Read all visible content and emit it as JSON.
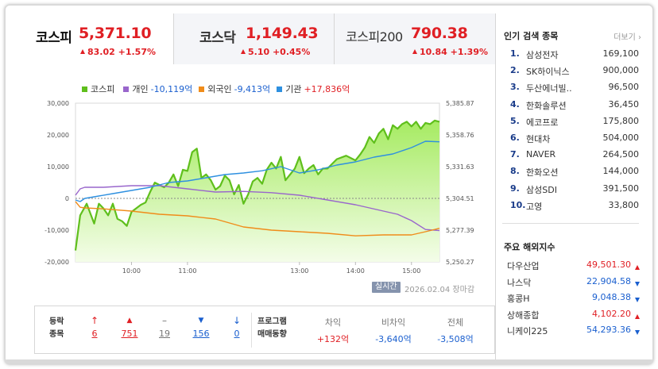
{
  "tabs": [
    {
      "name": "코스피",
      "value": "5,371.10",
      "change": "83.02 +1.57%",
      "direction": "up",
      "active": true
    },
    {
      "name": "코스닥",
      "value": "1,149.43",
      "change": "5.10 +0.45%",
      "direction": "up",
      "active": false
    },
    {
      "name": "코스피200",
      "value": "790.38",
      "change": "10.84 +1.39%",
      "direction": "up",
      "active": false
    }
  ],
  "legend": [
    {
      "name": "코스피",
      "value": "",
      "color": "#5fbf1c",
      "tone": ""
    },
    {
      "name": "개인",
      "value": "-10,119억",
      "color": "#9966cc",
      "tone": "neg"
    },
    {
      "name": "외국인",
      "value": "-9,413억",
      "color": "#f08c1a",
      "tone": "neg"
    },
    {
      "name": "기관",
      "value": "+17,836억",
      "color": "#2e90e0",
      "tone": "pos"
    }
  ],
  "chart_data": {
    "type": "line",
    "x_ticks": [
      "10:00",
      "11:00",
      "13:00",
      "14:00",
      "15:00"
    ],
    "y_left_ticks": [
      "30,000",
      "20,000",
      "10,000",
      "0",
      "-10,000",
      "-20,000"
    ],
    "y_right_ticks": [
      "5,385.87",
      "5,358.76",
      "5,331.63",
      "5,304.51",
      "5,277.39",
      "5,250.27"
    ],
    "ylim_left": [
      -20000,
      30000
    ],
    "ylim_right": [
      5250.27,
      5385.87
    ],
    "x_range": [
      "09:00",
      "15:30"
    ],
    "series": [
      {
        "name": "코스피",
        "axis": "right",
        "color": "#5fbf1c",
        "x": [
          "09:00",
          "09:05",
          "09:12",
          "09:20",
          "09:25",
          "09:30",
          "09:35",
          "09:40",
          "09:45",
          "09:50",
          "09:55",
          "10:00",
          "10:10",
          "10:15",
          "10:20",
          "10:25",
          "10:30",
          "10:35",
          "10:40",
          "10:45",
          "10:50",
          "10:55",
          "11:00",
          "11:05",
          "11:10",
          "11:15",
          "11:20",
          "11:25",
          "11:30",
          "11:35",
          "11:40",
          "11:45",
          "11:50",
          "11:55",
          "12:00",
          "12:05",
          "12:10",
          "12:15",
          "12:20",
          "12:25",
          "12:30",
          "12:35",
          "12:40",
          "12:45",
          "12:50",
          "12:55",
          "13:00",
          "13:05",
          "13:10",
          "13:15",
          "13:20",
          "13:25",
          "13:30",
          "13:40",
          "13:50",
          "14:00",
          "14:05",
          "14:10",
          "14:15",
          "14:20",
          "14:25",
          "14:30",
          "14:35",
          "14:40",
          "14:45",
          "14:50",
          "14:55",
          "15:00",
          "15:05",
          "15:10",
          "15:15",
          "15:20",
          "15:25",
          "15:30"
        ],
        "values": [
          5260,
          5290,
          5300,
          5283,
          5300,
          5296,
          5290,
          5300,
          5287,
          5285,
          5281,
          5293,
          5299,
          5301,
          5310,
          5318,
          5316,
          5314,
          5318,
          5325,
          5315,
          5329,
          5328,
          5344,
          5347,
          5322,
          5325,
          5320,
          5312,
          5315,
          5324,
          5320,
          5308,
          5316,
          5300,
          5308,
          5319,
          5322,
          5317,
          5329,
          5335,
          5330,
          5340,
          5320,
          5325,
          5330,
          5340,
          5326,
          5330,
          5333,
          5325,
          5330,
          5330,
          5338,
          5341,
          5337,
          5342,
          5348,
          5357,
          5352,
          5360,
          5364,
          5355,
          5367,
          5364,
          5368,
          5370,
          5366,
          5370,
          5364,
          5369,
          5368,
          5371,
          5370
        ]
      },
      {
        "name": "개인",
        "axis": "left",
        "color": "#9966cc",
        "x": [
          "09:00",
          "09:05",
          "09:10",
          "09:30",
          "10:00",
          "10:30",
          "11:00",
          "11:30",
          "12:00",
          "12:30",
          "13:00",
          "13:30",
          "14:00",
          "14:30",
          "14:45",
          "15:00",
          "15:15",
          "15:30"
        ],
        "values": [
          1000,
          3000,
          3500,
          3500,
          4000,
          4000,
          3000,
          2000,
          2200,
          1800,
          1000,
          -500,
          -2000,
          -4000,
          -5000,
          -7000,
          -9800,
          -10119
        ]
      },
      {
        "name": "외국인",
        "axis": "left",
        "color": "#f08c1a",
        "x": [
          "09:00",
          "09:05",
          "09:10",
          "09:30",
          "10:00",
          "10:30",
          "11:00",
          "11:30",
          "12:00",
          "12:30",
          "13:00",
          "13:30",
          "14:00",
          "14:30",
          "15:00",
          "15:15",
          "15:30"
        ],
        "values": [
          -1000,
          -2800,
          -3000,
          -3300,
          -4000,
          -5000,
          -5500,
          -6500,
          -9000,
          -10000,
          -10500,
          -11000,
          -11800,
          -11500,
          -11500,
          -10500,
          -9413
        ]
      },
      {
        "name": "기관",
        "axis": "left",
        "color": "#2e90e0",
        "x": [
          "09:00",
          "09:05",
          "09:10",
          "09:20",
          "09:40",
          "10:00",
          "10:20",
          "10:40",
          "11:00",
          "11:20",
          "11:40",
          "12:00",
          "12:20",
          "12:40",
          "13:00",
          "13:20",
          "13:40",
          "14:00",
          "14:20",
          "14:40",
          "15:00",
          "15:15",
          "15:30"
        ],
        "values": [
          -500,
          -1000,
          0,
          500,
          1500,
          2500,
          3500,
          5000,
          5500,
          6500,
          7500,
          8000,
          8700,
          10000,
          8000,
          9000,
          10500,
          11500,
          13000,
          14000,
          16000,
          18000,
          17836
        ]
      }
    ],
    "baseline_left": 0
  },
  "status": {
    "realtime_label": "실시간",
    "date_text": "2026.02.04  장마감"
  },
  "summary": {
    "left_header": [
      "등락",
      "종목"
    ],
    "cols": [
      {
        "icon": "↑",
        "value": "6",
        "tone": "up"
      },
      {
        "icon": "▲",
        "value": "751",
        "tone": "up"
      },
      {
        "icon": "–",
        "value": "19",
        "tone": "flat"
      },
      {
        "icon": "▼",
        "value": "156",
        "tone": "down"
      },
      {
        "icon": "↓",
        "value": "0",
        "tone": "down"
      }
    ],
    "program_header": [
      "프로그램",
      "매매동향"
    ],
    "program": [
      {
        "label": "차익",
        "value": "+132억",
        "tone": "up"
      },
      {
        "label": "비차익",
        "value": "-3,640억",
        "tone": "down"
      },
      {
        "label": "전체",
        "value": "-3,508억",
        "tone": "down"
      }
    ]
  },
  "popular": {
    "title": "인기 검색 종목",
    "more": "더보기",
    "items": [
      {
        "rank": "1.",
        "name": "삼성전자",
        "price": "169,100"
      },
      {
        "rank": "2.",
        "name": "SK하이닉스",
        "price": "900,000"
      },
      {
        "rank": "3.",
        "name": "두산에너빌..",
        "price": "96,500"
      },
      {
        "rank": "4.",
        "name": "한화솔루션",
        "price": "36,450"
      },
      {
        "rank": "5.",
        "name": "에코프로",
        "price": "175,800"
      },
      {
        "rank": "6.",
        "name": "현대차",
        "price": "504,000"
      },
      {
        "rank": "7.",
        "name": "NAVER",
        "price": "264,500"
      },
      {
        "rank": "8.",
        "name": "한화오션",
        "price": "144,000"
      },
      {
        "rank": "9.",
        "name": "삼성SDI",
        "price": "391,500"
      },
      {
        "rank": "10.",
        "name": "고영",
        "price": "33,800"
      }
    ]
  },
  "overseas": {
    "title": "주요 해외지수",
    "items": [
      {
        "name": "다우산업",
        "value": "49,501.30",
        "direction": "up"
      },
      {
        "name": "나스닥",
        "value": "22,904.58",
        "direction": "down"
      },
      {
        "name": "홍콩H",
        "value": "9,048.38",
        "direction": "down"
      },
      {
        "name": "상해종합",
        "value": "4,102.20",
        "direction": "up"
      },
      {
        "name": "니케이225",
        "value": "54,293.36",
        "direction": "down"
      }
    ]
  },
  "colors": {
    "up": "#e01f24",
    "down": "#1a5fcf",
    "flat": "#777777"
  }
}
